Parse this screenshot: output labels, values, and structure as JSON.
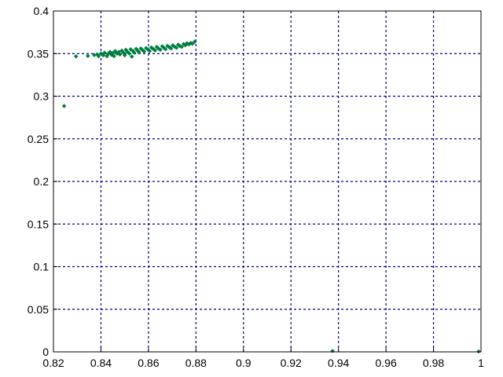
{
  "chart_data": {
    "type": "scatter",
    "title": "",
    "xlabel": "",
    "ylabel": "",
    "xlim": [
      0.82,
      1.0
    ],
    "ylim": [
      0,
      0.4
    ],
    "xticks": [
      "0.82",
      "0.84",
      "0.86",
      "0.88",
      "0.9",
      "0.92",
      "0.94",
      "0.96",
      "0.98",
      "1"
    ],
    "yticks": [
      "0",
      "0.05",
      "0.1",
      "0.15",
      "0.2",
      "0.25",
      "0.3",
      "0.35",
      "0.4"
    ],
    "grid": true,
    "grid_color": "#000080",
    "marker_color": "#007f3f",
    "points": [
      [
        0.8245,
        0.2885
      ],
      [
        0.8295,
        0.3468
      ],
      [
        0.8345,
        0.3472
      ],
      [
        0.8372,
        0.3483
      ],
      [
        0.8385,
        0.349
      ],
      [
        0.839,
        0.347
      ],
      [
        0.84,
        0.35
      ],
      [
        0.841,
        0.348
      ],
      [
        0.8415,
        0.351
      ],
      [
        0.8425,
        0.347
      ],
      [
        0.843,
        0.3495
      ],
      [
        0.8438,
        0.352
      ],
      [
        0.8445,
        0.3485
      ],
      [
        0.845,
        0.3507
      ],
      [
        0.8455,
        0.347
      ],
      [
        0.846,
        0.353
      ],
      [
        0.8468,
        0.35
      ],
      [
        0.8475,
        0.352
      ],
      [
        0.848,
        0.349
      ],
      [
        0.8488,
        0.3535
      ],
      [
        0.8495,
        0.351
      ],
      [
        0.85,
        0.348
      ],
      [
        0.8505,
        0.3545
      ],
      [
        0.8512,
        0.352
      ],
      [
        0.852,
        0.35
      ],
      [
        0.8525,
        0.355
      ],
      [
        0.853,
        0.3465
      ],
      [
        0.8535,
        0.353
      ],
      [
        0.854,
        0.351
      ],
      [
        0.8548,
        0.3555
      ],
      [
        0.8555,
        0.3535
      ],
      [
        0.856,
        0.3515
      ],
      [
        0.8568,
        0.356
      ],
      [
        0.8575,
        0.354
      ],
      [
        0.8582,
        0.3525
      ],
      [
        0.859,
        0.3565
      ],
      [
        0.8598,
        0.3548
      ],
      [
        0.8605,
        0.353
      ],
      [
        0.8612,
        0.3572
      ],
      [
        0.862,
        0.3555
      ],
      [
        0.8628,
        0.3538
      ],
      [
        0.8635,
        0.3578
      ],
      [
        0.8642,
        0.356
      ],
      [
        0.865,
        0.3545
      ],
      [
        0.8658,
        0.3585
      ],
      [
        0.8665,
        0.3568
      ],
      [
        0.8672,
        0.3552
      ],
      [
        0.868,
        0.359
      ],
      [
        0.8688,
        0.3575
      ],
      [
        0.8695,
        0.356
      ],
      [
        0.8702,
        0.3597
      ],
      [
        0.871,
        0.3582
      ],
      [
        0.8718,
        0.3568
      ],
      [
        0.8725,
        0.3605
      ],
      [
        0.8732,
        0.359
      ],
      [
        0.874,
        0.3578
      ],
      [
        0.8748,
        0.3612
      ],
      [
        0.8755,
        0.3598
      ],
      [
        0.8762,
        0.362
      ],
      [
        0.877,
        0.3608
      ],
      [
        0.8778,
        0.3625
      ],
      [
        0.8785,
        0.3615
      ],
      [
        0.8795,
        0.364
      ],
      [
        0.9375,
        0.001
      ],
      [
        0.999,
        0.0005
      ]
    ]
  }
}
